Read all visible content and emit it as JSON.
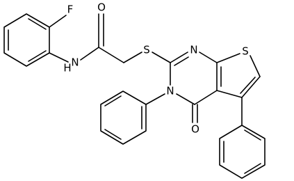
{
  "atoms": [
    {
      "label": "F"
    },
    {
      "label": "O"
    },
    {
      "label": "H"
    },
    {
      "label": "N"
    },
    {
      "label": "S"
    },
    {
      "label": "N"
    },
    {
      "label": "S"
    },
    {
      "label": "N"
    },
    {
      "label": "O"
    }
  ]
}
